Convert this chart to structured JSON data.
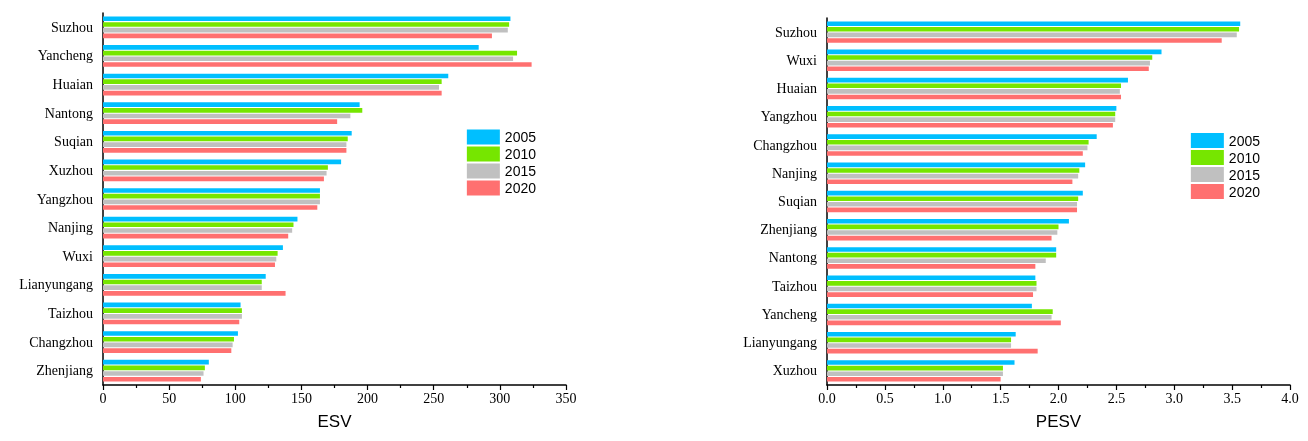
{
  "chart_data": [
    {
      "type": "bar",
      "orientation": "horizontal",
      "xlabel": "ESV",
      "legend": "right",
      "categories": [
        "Suzhou",
        "Yancheng",
        "Huaian",
        "Nantong",
        "Suqian",
        "Xuzhou",
        "Yangzhou",
        "Nanjing",
        "Wuxi",
        "Lianyungang",
        "Taizhou",
        "Changzhou",
        "Zhenjiang"
      ],
      "series": [
        {
          "name": "2005",
          "color": "#00bfff",
          "values": [
            308,
            284,
            261,
            194,
            188,
            180,
            164,
            147,
            136,
            123,
            104,
            102,
            80
          ]
        },
        {
          "name": "2010",
          "color": "#76e600",
          "values": [
            307,
            313,
            256,
            196,
            185,
            170,
            164,
            144,
            132,
            120,
            105,
            99,
            77
          ]
        },
        {
          "name": "2015",
          "color": "#c0c0c0",
          "values": [
            306,
            310,
            254,
            187,
            184,
            169,
            164,
            143,
            131,
            120,
            105,
            98,
            76
          ]
        },
        {
          "name": "2020",
          "color": "#ff7070",
          "values": [
            294,
            324,
            256,
            177,
            184,
            167,
            162,
            140,
            130,
            138,
            103,
            97,
            74
          ]
        }
      ],
      "xlim": [
        0,
        350
      ],
      "xticks": [
        0,
        {
          "value": 25,
          "label": null
        },
        50,
        {
          "value": 75,
          "label": null
        },
        100,
        {
          "value": 125,
          "label": null
        },
        150,
        {
          "value": 175,
          "label": null
        },
        200,
        {
          "value": 225,
          "label": null
        },
        250,
        {
          "value": 275,
          "label": null
        },
        300,
        {
          "value": 325,
          "label": null
        },
        350
      ]
    },
    {
      "type": "bar",
      "orientation": "horizontal",
      "xlabel": "PESV",
      "legend": "right",
      "categories": [
        "Suzhou",
        "Wuxi",
        "Huaian",
        "Yangzhou",
        "Changzhou",
        "Nanjing",
        "Suqian",
        "Zhenjiang",
        "Nantong",
        "Taizhou",
        "Yancheng",
        "Lianyungang",
        "Xuzhou"
      ],
      "series": [
        {
          "name": "2005",
          "color": "#00bfff",
          "values": [
            3.57,
            2.89,
            2.6,
            2.5,
            2.33,
            2.23,
            2.21,
            2.09,
            1.98,
            1.8,
            1.77,
            1.63,
            1.62
          ]
        },
        {
          "name": "2010",
          "color": "#76e600",
          "values": [
            3.56,
            2.81,
            2.54,
            2.49,
            2.26,
            2.18,
            2.17,
            2.0,
            1.98,
            1.81,
            1.95,
            1.59,
            1.52
          ]
        },
        {
          "name": "2015",
          "color": "#c0c0c0",
          "values": [
            3.54,
            2.79,
            2.53,
            2.49,
            2.25,
            2.17,
            2.16,
            1.99,
            1.89,
            1.81,
            1.94,
            1.59,
            1.52
          ]
        },
        {
          "name": "2020",
          "color": "#ff7070",
          "values": [
            3.41,
            2.78,
            2.54,
            2.47,
            2.21,
            2.12,
            2.16,
            1.94,
            1.8,
            1.78,
            2.02,
            1.82,
            1.5
          ]
        }
      ],
      "xlim": [
        0,
        4
      ],
      "xticks": [
        {
          "value": 0,
          "label": "0.0"
        },
        {
          "value": 0.25,
          "label": null
        },
        0.5,
        {
          "value": 0.75,
          "label": null
        },
        {
          "value": 1,
          "label": "1.0"
        },
        {
          "value": 1.25,
          "label": null
        },
        1.5,
        {
          "value": 1.75,
          "label": null
        },
        {
          "value": 2,
          "label": "2.0"
        },
        {
          "value": 2.25,
          "label": null
        },
        2.5,
        {
          "value": 2.75,
          "label": null
        },
        {
          "value": 3,
          "label": "3.0"
        },
        {
          "value": 3.25,
          "label": null
        },
        3.5,
        {
          "value": 3.75,
          "label": null
        },
        {
          "value": 4,
          "label": "4.0"
        }
      ]
    }
  ]
}
